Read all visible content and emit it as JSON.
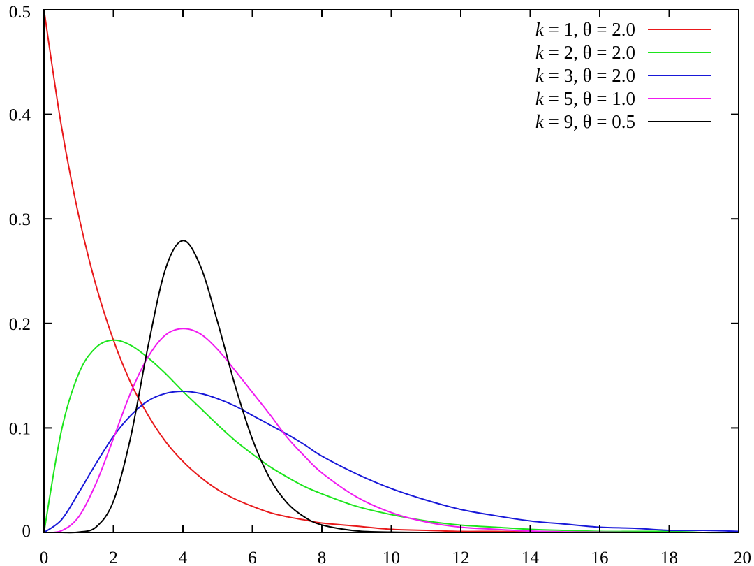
{
  "chart_data": {
    "type": "line",
    "title": "",
    "xlabel": "",
    "ylabel": "",
    "xlim": [
      0,
      20
    ],
    "ylim": [
      0,
      0.5
    ],
    "x_ticks": [
      "0",
      "2",
      "4",
      "6",
      "8",
      "10",
      "12",
      "14",
      "16",
      "18",
      "20"
    ],
    "y_ticks": [
      "0",
      "0.1",
      "0.2",
      "0.3",
      "0.4",
      "0.5"
    ],
    "grid": false,
    "legend_position": "top-right",
    "x": [
      0,
      0.5,
      1,
      1.5,
      2,
      2.5,
      3,
      3.5,
      4,
      4.5,
      5,
      5.5,
      6,
      6.5,
      7,
      7.5,
      8,
      9,
      10,
      11,
      12,
      13,
      14,
      15,
      16,
      17,
      18,
      19,
      20
    ],
    "series": [
      {
        "name_var": "k",
        "name_rest": " = 1, θ = 2.0",
        "color": "#e8191b",
        "values": [
          0.5,
          0.389,
          0.303,
          0.236,
          0.184,
          0.143,
          0.112,
          0.087,
          0.068,
          0.053,
          0.041,
          0.032,
          0.025,
          0.019,
          0.015,
          0.012,
          0.009,
          0.006,
          0.003,
          0.002,
          0.001,
          0.001,
          0.0005,
          0.0003,
          0.0002,
          0.0001,
          0.0001,
          0.0,
          0.0
        ]
      },
      {
        "name_var": "k",
        "name_rest": " = 2, θ = 2.0",
        "color": "#1de51d",
        "values": [
          0.0,
          0.097,
          0.152,
          0.177,
          0.184,
          0.179,
          0.167,
          0.152,
          0.135,
          0.119,
          0.103,
          0.088,
          0.075,
          0.063,
          0.053,
          0.044,
          0.037,
          0.025,
          0.017,
          0.011,
          0.007,
          0.005,
          0.003,
          0.002,
          0.001,
          0.001,
          0.001,
          0.0,
          0.0
        ]
      },
      {
        "name_var": "k",
        "name_rest": " = 3, θ = 2.0",
        "color": "#1818d8",
        "values": [
          0.0,
          0.012,
          0.038,
          0.066,
          0.092,
          0.112,
          0.126,
          0.133,
          0.135,
          0.133,
          0.128,
          0.121,
          0.112,
          0.103,
          0.094,
          0.084,
          0.073,
          0.056,
          0.042,
          0.031,
          0.022,
          0.016,
          0.011,
          0.008,
          0.005,
          0.004,
          0.002,
          0.002,
          0.001
        ]
      },
      {
        "name_var": "k",
        "name_rest": " = 5, θ = 1.0",
        "color": "#f01af0",
        "values": [
          0.0,
          0.0016,
          0.015,
          0.047,
          0.09,
          0.134,
          0.168,
          0.189,
          0.195,
          0.19,
          0.175,
          0.155,
          0.134,
          0.113,
          0.091,
          0.073,
          0.057,
          0.034,
          0.019,
          0.01,
          0.005,
          0.003,
          0.0013,
          0.0006,
          0.0003,
          0.0001,
          0.0,
          0.0,
          0.0
        ]
      },
      {
        "name_var": "k",
        "name_rest": " = 9, θ = 0.5",
        "color": "#000000",
        "values": [
          0.0,
          0.0,
          0.0003,
          0.0052,
          0.0299,
          0.0918,
          0.1787,
          0.2522,
          0.2792,
          0.2552,
          0.2011,
          0.1408,
          0.0893,
          0.0518,
          0.0283,
          0.0147,
          0.0072,
          0.0015,
          0.0003,
          0.0,
          0.0,
          0.0,
          0.0,
          0.0,
          0.0,
          0.0,
          0.0,
          0.0,
          0.0
        ]
      }
    ]
  }
}
